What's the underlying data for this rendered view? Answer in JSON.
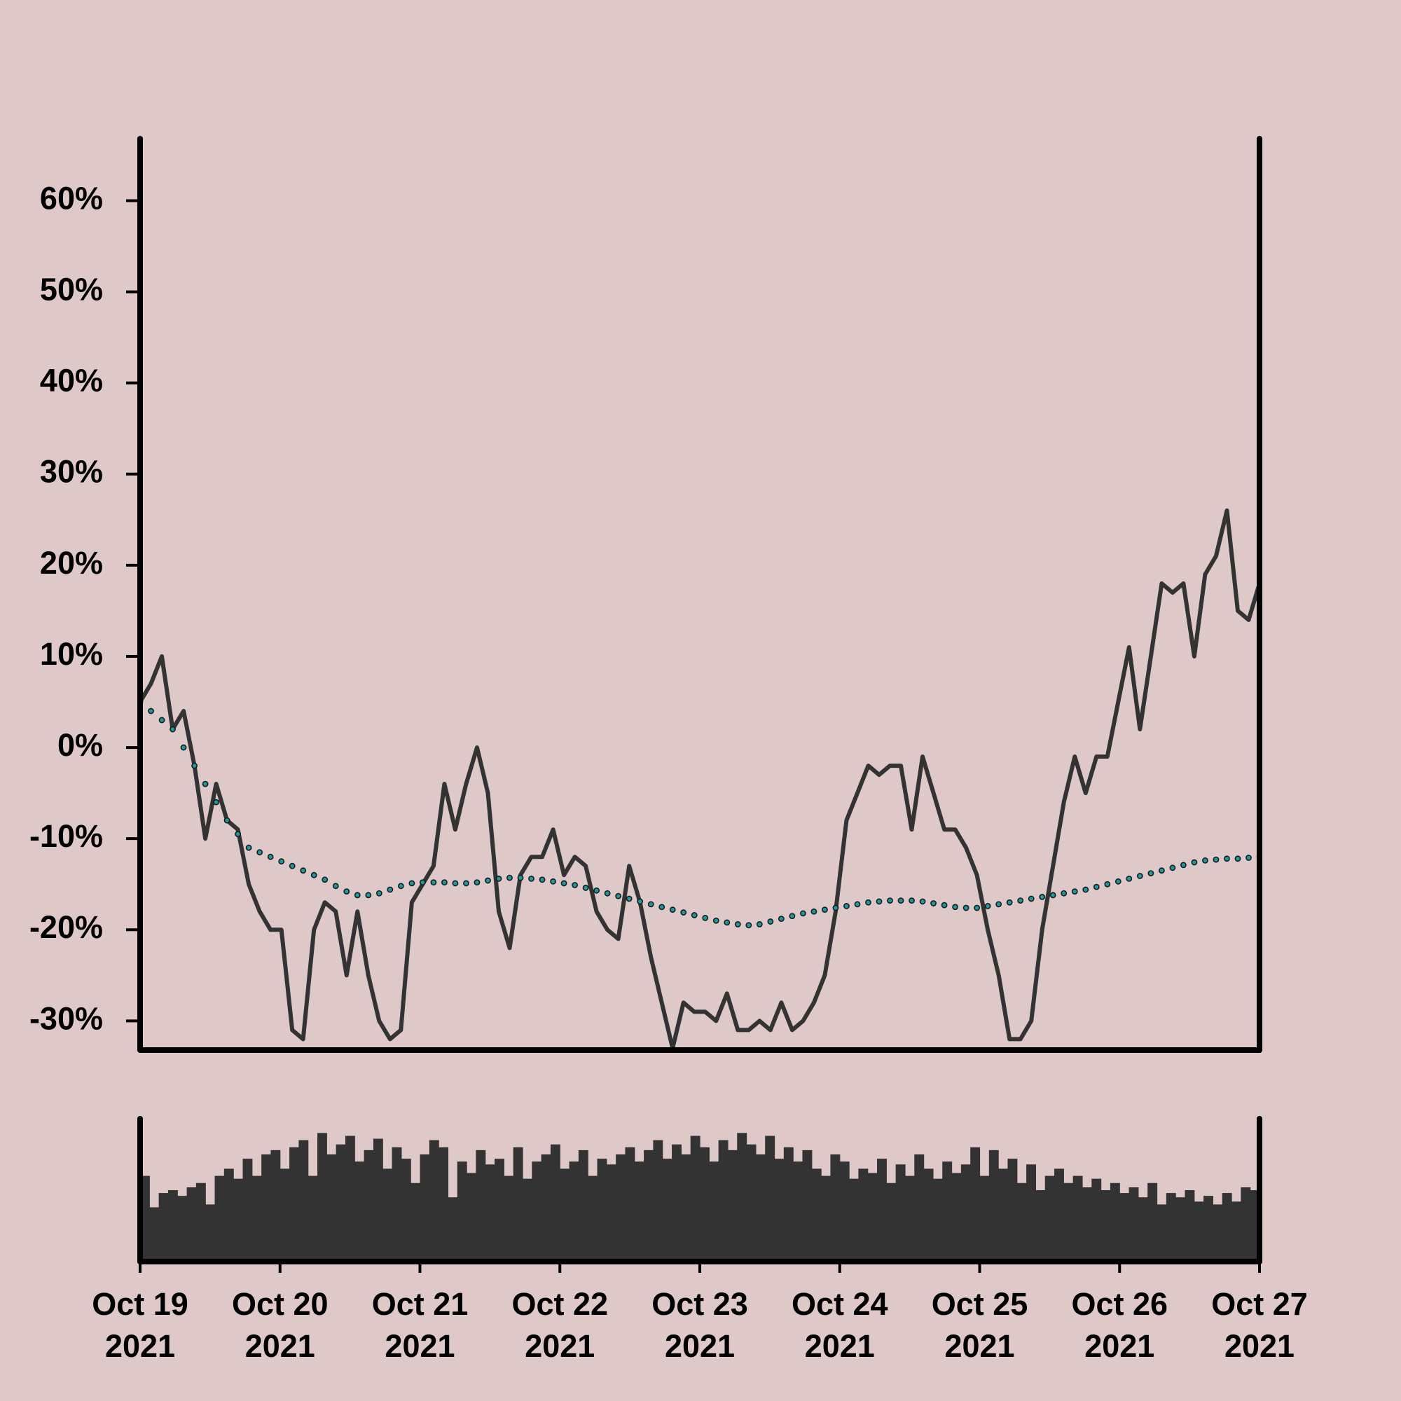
{
  "chart_data": [
    {
      "type": "line",
      "xlim": [
        "2021-10-19",
        "2021-10-27"
      ],
      "ylim": [
        -33.2,
        66.8
      ],
      "yticks": [
        {
          "value": -30,
          "label": "-30%"
        },
        {
          "value": -20,
          "label": "-20%"
        },
        {
          "value": -10,
          "label": "-10%"
        },
        {
          "value": 0,
          "label": "0%"
        },
        {
          "value": 10,
          "label": "10%"
        },
        {
          "value": 20,
          "label": "20%"
        },
        {
          "value": 30,
          "label": "30%"
        },
        {
          "value": 40,
          "label": "40%"
        },
        {
          "value": 50,
          "label": "50%"
        },
        {
          "value": 60,
          "label": "60%"
        }
      ],
      "series": [
        {
          "color": "#333333",
          "marker": "none",
          "values": [
            5,
            7,
            10,
            2,
            4,
            -2,
            -10,
            -4,
            -8,
            -9,
            -15,
            -18,
            -20,
            -20,
            -31,
            -32,
            -20,
            -17,
            -18,
            -25,
            -18,
            -25,
            -30,
            -32,
            -31,
            -17,
            -15,
            -13,
            -4,
            -9,
            -4,
            0,
            -5,
            -18,
            -22,
            -14,
            -12,
            -12,
            -9,
            -14,
            -12,
            -13,
            -18,
            -20,
            -21,
            -13,
            -17,
            -23,
            -28,
            -33,
            -28,
            -29,
            -29,
            -30,
            -27,
            -31,
            -31,
            -30,
            -31,
            -28,
            -31,
            -30,
            -28,
            -25,
            -18,
            -8,
            -5,
            -2,
            -3,
            -2,
            -2,
            -9,
            -1,
            -5,
            -9,
            -9,
            -11,
            -14,
            -20,
            -25,
            -32,
            -32,
            -30,
            -20,
            -13,
            -6,
            -1,
            -5,
            -1,
            -1,
            5,
            11,
            2,
            10,
            18,
            17,
            18,
            10,
            19,
            21,
            26,
            15,
            14,
            18
          ]
        },
        {
          "color": "#1a9aa0",
          "marker": "dots",
          "values": [
            5,
            4,
            3,
            2,
            0,
            -2,
            -4,
            -6,
            -8,
            -9.5,
            -11,
            -11.5,
            -12,
            -12.5,
            -13,
            -13.5,
            -14,
            -14.5,
            -15.2,
            -15.8,
            -16.2,
            -16.2,
            -16,
            -15.6,
            -15.2,
            -14.9,
            -14.8,
            -14.8,
            -14.8,
            -14.9,
            -14.9,
            -14.8,
            -14.6,
            -14.4,
            -14.3,
            -14.3,
            -14.4,
            -14.5,
            -14.7,
            -14.9,
            -15.1,
            -15.4,
            -15.7,
            -16,
            -16.3,
            -16.6,
            -16.9,
            -17.2,
            -17.5,
            -17.8,
            -18.1,
            -18.4,
            -18.7,
            -19,
            -19.2,
            -19.4,
            -19.5,
            -19.4,
            -19.1,
            -18.8,
            -18.5,
            -18.2,
            -18,
            -17.8,
            -17.6,
            -17.4,
            -17.2,
            -17,
            -16.9,
            -16.8,
            -16.8,
            -16.8,
            -16.9,
            -17.1,
            -17.3,
            -17.5,
            -17.6,
            -17.6,
            -17.4,
            -17.2,
            -17,
            -16.8,
            -16.6,
            -16.4,
            -16.2,
            -16,
            -15.8,
            -15.6,
            -15.3,
            -15,
            -14.7,
            -14.4,
            -14.1,
            -13.8,
            -13.5,
            -13.2,
            -12.9,
            -12.6,
            -12.4,
            -12.3,
            -12.2,
            -12.2,
            -12.1,
            -12
          ]
        }
      ]
    },
    {
      "type": "bar",
      "color": "#333333",
      "xlim": [
        "2021-10-19",
        "2021-10-27"
      ],
      "ylim": [
        0,
        100
      ],
      "xticks": [
        {
          "value": "2021-10-19",
          "label": "Oct 19 2021"
        },
        {
          "value": "2021-10-20",
          "label": "Oct 20 2021"
        },
        {
          "value": "2021-10-21",
          "label": "Oct 21 2021"
        },
        {
          "value": "2021-10-22",
          "label": "Oct 22 2021"
        },
        {
          "value": "2021-10-23",
          "label": "Oct 23 2021"
        },
        {
          "value": "2021-10-24",
          "label": "Oct 24 2021"
        },
        {
          "value": "2021-10-25",
          "label": "Oct 25 2021"
        },
        {
          "value": "2021-10-26",
          "label": "Oct 26 2021"
        },
        {
          "value": "2021-10-27",
          "label": "Oct 27 2021"
        }
      ],
      "values": [
        60,
        38,
        48,
        50,
        46,
        52,
        55,
        40,
        60,
        65,
        58,
        72,
        60,
        75,
        78,
        65,
        80,
        85,
        60,
        90,
        75,
        82,
        88,
        70,
        78,
        86,
        65,
        80,
        72,
        55,
        75,
        85,
        80,
        45,
        70,
        62,
        78,
        68,
        72,
        60,
        80,
        58,
        70,
        75,
        82,
        65,
        70,
        78,
        60,
        72,
        68,
        75,
        80,
        70,
        78,
        85,
        72,
        82,
        75,
        88,
        80,
        70,
        85,
        78,
        90,
        82,
        75,
        88,
        72,
        80,
        70,
        78,
        65,
        60,
        75,
        70,
        58,
        65,
        62,
        72,
        55,
        68,
        60,
        75,
        65,
        58,
        70,
        62,
        68,
        80,
        60,
        78,
        65,
        72,
        55,
        68,
        50,
        60,
        65,
        55,
        60,
        52,
        58,
        50,
        55,
        48,
        52,
        45,
        55,
        40,
        48,
        45,
        50,
        42,
        46,
        40,
        48,
        42,
        52,
        50
      ]
    }
  ]
}
